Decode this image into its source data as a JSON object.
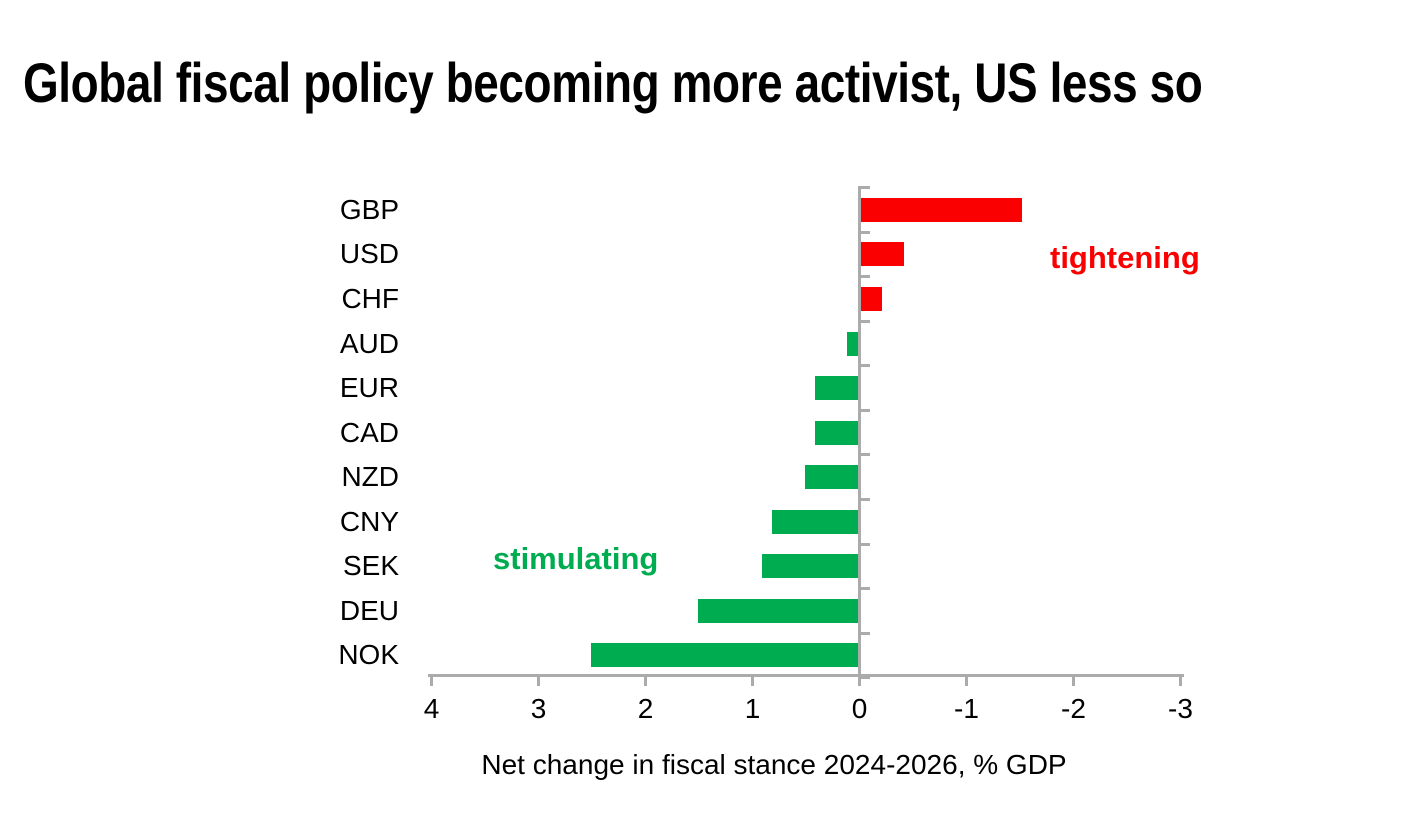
{
  "chart_data": {
    "type": "bar",
    "orientation": "horizontal",
    "title": "Global fiscal policy becoming more activist, US less so",
    "xlabel": "Net change in fiscal stance 2024-2026, % GDP",
    "categories": [
      "GBP",
      "USD",
      "CHF",
      "AUD",
      "EUR",
      "CAD",
      "NZD",
      "CNY",
      "SEK",
      "DEU",
      "NOK"
    ],
    "values": [
      -1.5,
      -0.4,
      -0.2,
      0.1,
      0.4,
      0.4,
      0.5,
      0.8,
      0.9,
      1.5,
      2.5
    ],
    "x_ticks": [
      4,
      3,
      2,
      1,
      0,
      -1,
      -2,
      -3
    ],
    "xlim": [
      4,
      -3
    ],
    "x_axis_reversed": true,
    "grid": false,
    "legend": false,
    "positive_color": "#00AC50",
    "negative_color": "#FA0000",
    "axis_color": "#ABABAB",
    "annotations": [
      {
        "text": "tightening",
        "color": "#FA0000",
        "meaning": "negative bars"
      },
      {
        "text": "stimulating",
        "color": "#00AC50",
        "meaning": "positive bars"
      }
    ]
  }
}
